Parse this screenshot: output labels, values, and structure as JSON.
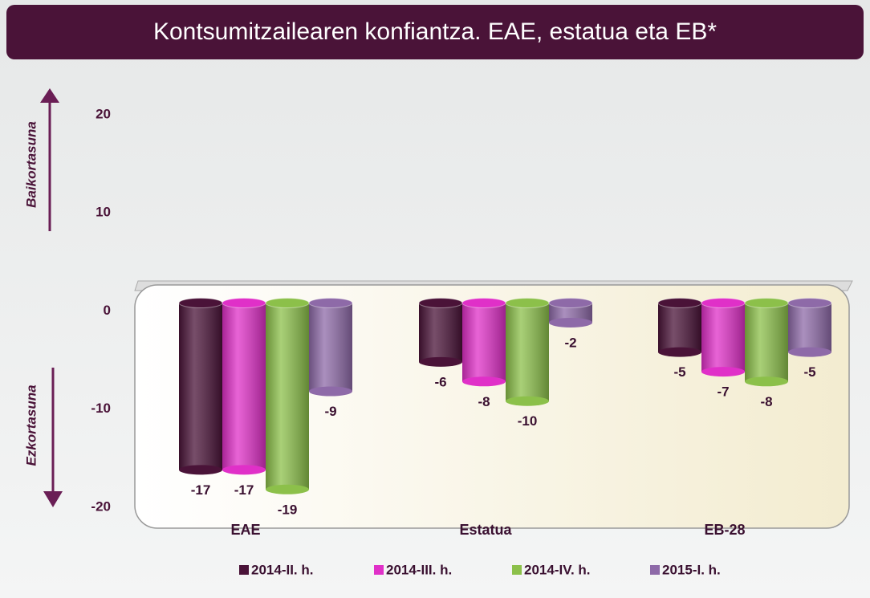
{
  "chart_data": {
    "type": "bar",
    "title": "Kontsumitzailearen konfiantza. EAE, estatua eta EB*",
    "axis_labels": {
      "positive": "Baikortasuna",
      "negative": "Ezkortasuna"
    },
    "categories": [
      "EAE",
      "Estatua",
      "EB-28"
    ],
    "series": [
      {
        "name": "2014-II. h.",
        "color": "#4a1338",
        "values": [
          -17,
          -6,
          -5
        ]
      },
      {
        "name": "2014-III. h.",
        "color": "#e030c8",
        "values": [
          -17,
          -8,
          -7
        ]
      },
      {
        "name": "2014-IV. h.",
        "color": "#8cc04a",
        "values": [
          -19,
          -10,
          -8
        ]
      },
      {
        "name": "2015-I. h.",
        "color": "#8e6aa8",
        "values": [
          -9,
          -2,
          -5
        ]
      }
    ],
    "ylim": [
      -20,
      20
    ],
    "yticks": [
      20,
      10,
      0,
      -10,
      -20
    ],
    "grid": false,
    "legend": "bottom"
  }
}
